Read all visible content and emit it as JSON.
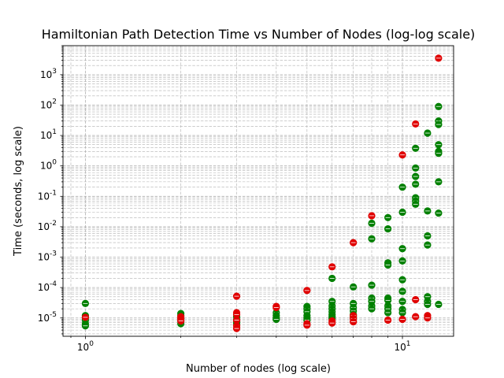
{
  "chart_data": {
    "type": "scatter",
    "title": "Hamiltonian Path Detection Time vs Number of Nodes (log-log scale)",
    "xlabel": "Number of nodes (log scale)",
    "ylabel": "Time (seconds, log scale)",
    "xscale": "log",
    "yscale": "log",
    "xlim": [
      0.85,
      14.5
    ],
    "ylim": [
      2.5e-06,
      9000
    ],
    "grid": true,
    "grid_which": "both",
    "marker_style": "circle with horizontal bar",
    "x_major_ticks": [
      1,
      10
    ],
    "y_major_ticks": [
      1e-05,
      0.0001,
      0.001,
      0.01,
      0.1,
      1,
      10,
      100,
      1000
    ],
    "series": [
      {
        "color": "#008000",
        "points": [
          [
            1,
            3e-05
          ],
          [
            1,
            1.2e-05
          ],
          [
            1,
            1e-05
          ],
          [
            1,
            8.5e-06
          ],
          [
            1,
            6.5e-06
          ],
          [
            1,
            5.5e-06
          ],
          [
            2,
            1.4e-05
          ],
          [
            2,
            1.2e-05
          ],
          [
            2,
            9.5e-06
          ],
          [
            2,
            8e-06
          ],
          [
            2,
            6.5e-06
          ],
          [
            3,
            1.1e-05
          ],
          [
            3,
            9e-06
          ],
          [
            3,
            7.5e-06
          ],
          [
            3,
            6.5e-06
          ],
          [
            4,
            1.5e-05
          ],
          [
            4,
            1.2e-05
          ],
          [
            4,
            1e-05
          ],
          [
            4,
            9e-06
          ],
          [
            5,
            2.4e-05
          ],
          [
            5,
            2e-05
          ],
          [
            5,
            1.6e-05
          ],
          [
            5,
            1.2e-05
          ],
          [
            5,
            1e-05
          ],
          [
            5,
            8.5e-06
          ],
          [
            6,
            0.0002
          ],
          [
            6,
            3.5e-05
          ],
          [
            6,
            2.5e-05
          ],
          [
            6,
            2e-05
          ],
          [
            6,
            1.6e-05
          ],
          [
            6,
            1.3e-05
          ],
          [
            6,
            1.1e-05
          ],
          [
            6,
            9.5e-06
          ],
          [
            7,
            0.000105
          ],
          [
            7,
            3e-05
          ],
          [
            7,
            2.2e-05
          ],
          [
            7,
            1.7e-05
          ],
          [
            7,
            1.3e-05
          ],
          [
            7,
            1.1e-05
          ],
          [
            8,
            0.013
          ],
          [
            8,
            0.004
          ],
          [
            8,
            0.00012
          ],
          [
            8,
            4.5e-05
          ],
          [
            8,
            3.5e-05
          ],
          [
            8,
            2.5e-05
          ],
          [
            8,
            2e-05
          ],
          [
            9,
            0.02
          ],
          [
            9,
            0.0085
          ],
          [
            9,
            0.00065
          ],
          [
            9,
            0.00055
          ],
          [
            9,
            4.5e-05
          ],
          [
            9,
            3.8e-05
          ],
          [
            9,
            2.5e-05
          ],
          [
            9,
            2e-05
          ],
          [
            9,
            1.5e-05
          ],
          [
            10,
            0.2
          ],
          [
            10,
            0.03
          ],
          [
            10,
            0.0019
          ],
          [
            10,
            0.00075
          ],
          [
            10,
            0.00018
          ],
          [
            10,
            7.5e-05
          ],
          [
            10,
            3.5e-05
          ],
          [
            10,
            1.9e-05
          ],
          [
            10,
            1.5e-05
          ],
          [
            11,
            3.8
          ],
          [
            11,
            0.85
          ],
          [
            11,
            0.45
          ],
          [
            11,
            0.25
          ],
          [
            11,
            0.09
          ],
          [
            11,
            0.07
          ],
          [
            11,
            0.055
          ],
          [
            12,
            12
          ],
          [
            12,
            0.033
          ],
          [
            12,
            0.005
          ],
          [
            12,
            0.0025
          ],
          [
            12,
            5e-05
          ],
          [
            12,
            3.5e-05
          ],
          [
            12,
            2.8e-05
          ],
          [
            13,
            90
          ],
          [
            13,
            30
          ],
          [
            13,
            23
          ],
          [
            13,
            5
          ],
          [
            13,
            3
          ],
          [
            13,
            2.6
          ],
          [
            13,
            0.3
          ],
          [
            13,
            0.028
          ],
          [
            13,
            2.8e-05
          ]
        ]
      },
      {
        "color": "#e00000",
        "points": [
          [
            1,
            1.05e-05
          ],
          [
            2,
            1.1e-05
          ],
          [
            2,
            9.5e-06
          ],
          [
            2,
            8e-06
          ],
          [
            3,
            5.2e-05
          ],
          [
            3,
            1.5e-05
          ],
          [
            3,
            1.3e-05
          ],
          [
            3,
            8.5e-06
          ],
          [
            3,
            5.5e-06
          ],
          [
            3,
            4.5e-06
          ],
          [
            4,
            2.4e-05
          ],
          [
            4,
            2.2e-05
          ],
          [
            5,
            8e-05
          ],
          [
            5,
            6.5e-06
          ],
          [
            5,
            5.8e-06
          ],
          [
            6,
            0.00048
          ],
          [
            6,
            8e-06
          ],
          [
            6,
            6.8e-06
          ],
          [
            7,
            0.003
          ],
          [
            7,
            1.2e-05
          ],
          [
            7,
            9.5e-06
          ],
          [
            7,
            7.5e-06
          ],
          [
            8,
            0.023
          ],
          [
            9,
            8.5e-06
          ],
          [
            10,
            2.3
          ],
          [
            10,
            9e-06
          ],
          [
            11,
            24
          ],
          [
            11,
            4e-05
          ],
          [
            11,
            1.1e-05
          ],
          [
            12,
            1.2e-05
          ],
          [
            12,
            1e-05
          ],
          [
            13,
            3500
          ]
        ]
      }
    ]
  }
}
